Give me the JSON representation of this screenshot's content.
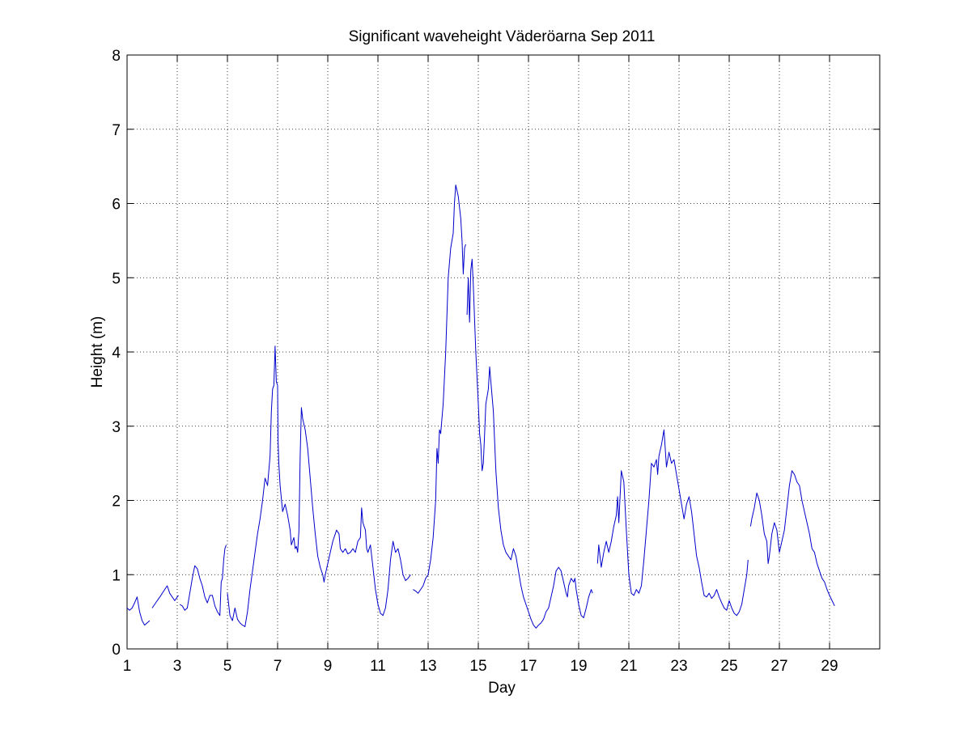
{
  "chart_data": {
    "type": "line",
    "title": "Significant waveheight Väderöarna Sep 2011",
    "xlabel": "Day",
    "ylabel": "Height (m)",
    "xlim": [
      1,
      31
    ],
    "ylim": [
      0,
      8
    ],
    "x_ticks": [
      1,
      3,
      5,
      7,
      9,
      11,
      13,
      15,
      17,
      19,
      21,
      23,
      25,
      27,
      29
    ],
    "y_ticks": [
      0,
      1,
      2,
      3,
      4,
      5,
      6,
      7,
      8
    ],
    "grid": true,
    "line_color": "#0000cc",
    "segments": [
      [
        [
          1.0,
          0.55
        ],
        [
          1.1,
          0.52
        ],
        [
          1.2,
          0.55
        ],
        [
          1.3,
          0.62
        ],
        [
          1.4,
          0.7
        ],
        [
          1.5,
          0.5
        ],
        [
          1.6,
          0.38
        ],
        [
          1.7,
          0.32
        ],
        [
          1.8,
          0.35
        ],
        [
          1.9,
          0.38
        ]
      ],
      [
        [
          2.0,
          0.55
        ],
        [
          2.1,
          0.6
        ],
        [
          2.2,
          0.65
        ],
        [
          2.35,
          0.72
        ],
        [
          2.5,
          0.8
        ],
        [
          2.6,
          0.85
        ],
        [
          2.7,
          0.75
        ],
        [
          2.8,
          0.7
        ],
        [
          2.9,
          0.65
        ],
        [
          3.0,
          0.7
        ],
        [
          3.05,
          0.72
        ]
      ],
      [
        [
          3.1,
          0.6
        ],
        [
          3.2,
          0.58
        ],
        [
          3.3,
          0.52
        ],
        [
          3.4,
          0.55
        ],
        [
          3.5,
          0.75
        ],
        [
          3.6,
          0.95
        ],
        [
          3.7,
          1.12
        ],
        [
          3.8,
          1.08
        ],
        [
          3.9,
          0.95
        ],
        [
          4.0,
          0.85
        ],
        [
          4.1,
          0.7
        ],
        [
          4.2,
          0.62
        ],
        [
          4.3,
          0.72
        ],
        [
          4.4,
          0.72
        ],
        [
          4.5,
          0.58
        ],
        [
          4.6,
          0.5
        ],
        [
          4.7,
          0.45
        ],
        [
          4.75,
          0.9
        ],
        [
          4.8,
          0.95
        ],
        [
          4.85,
          1.2
        ],
        [
          4.9,
          1.35
        ],
        [
          4.95,
          1.4
        ]
      ],
      [
        [
          5.0,
          0.75
        ],
        [
          5.1,
          0.45
        ],
        [
          5.2,
          0.38
        ],
        [
          5.3,
          0.55
        ],
        [
          5.4,
          0.4
        ],
        [
          5.5,
          0.35
        ],
        [
          5.6,
          0.32
        ],
        [
          5.7,
          0.3
        ],
        [
          5.8,
          0.5
        ],
        [
          5.9,
          0.8
        ],
        [
          6.0,
          1.05
        ],
        [
          6.1,
          1.3
        ],
        [
          6.2,
          1.55
        ],
        [
          6.3,
          1.75
        ],
        [
          6.4,
          2.0
        ],
        [
          6.5,
          2.3
        ],
        [
          6.6,
          2.2
        ],
        [
          6.7,
          2.6
        ],
        [
          6.75,
          3.2
        ],
        [
          6.8,
          3.5
        ],
        [
          6.85,
          3.55
        ],
        [
          6.9,
          4.08
        ],
        [
          6.95,
          3.6
        ],
        [
          7.0,
          3.55
        ],
        [
          7.02,
          2.8
        ],
        [
          7.05,
          2.5
        ],
        [
          7.1,
          2.2
        ],
        [
          7.2,
          1.85
        ],
        [
          7.3,
          1.95
        ],
        [
          7.4,
          1.8
        ],
        [
          7.5,
          1.6
        ],
        [
          7.55,
          1.4
        ],
        [
          7.65,
          1.5
        ],
        [
          7.7,
          1.35
        ],
        [
          7.75,
          1.38
        ],
        [
          7.8,
          1.3
        ],
        [
          7.85,
          1.6
        ],
        [
          7.9,
          2.6
        ],
        [
          7.95,
          3.25
        ],
        [
          8.0,
          3.1
        ],
        [
          8.1,
          2.95
        ],
        [
          8.2,
          2.7
        ],
        [
          8.3,
          2.3
        ],
        [
          8.4,
          1.9
        ],
        [
          8.5,
          1.55
        ],
        [
          8.6,
          1.25
        ],
        [
          8.7,
          1.1
        ],
        [
          8.8,
          1.0
        ],
        [
          8.85,
          0.9
        ],
        [
          8.9,
          1.0
        ],
        [
          9.0,
          1.15
        ],
        [
          9.1,
          1.3
        ],
        [
          9.2,
          1.45
        ],
        [
          9.3,
          1.55
        ],
        [
          9.35,
          1.6
        ],
        [
          9.45,
          1.55
        ],
        [
          9.5,
          1.35
        ],
        [
          9.6,
          1.3
        ],
        [
          9.7,
          1.35
        ],
        [
          9.8,
          1.28
        ],
        [
          9.9,
          1.3
        ],
        [
          10.0,
          1.35
        ],
        [
          10.1,
          1.3
        ],
        [
          10.2,
          1.45
        ],
        [
          10.3,
          1.5
        ],
        [
          10.35,
          1.9
        ],
        [
          10.4,
          1.7
        ],
        [
          10.5,
          1.6
        ],
        [
          10.55,
          1.35
        ],
        [
          10.6,
          1.3
        ],
        [
          10.7,
          1.4
        ],
        [
          10.8,
          1.1
        ],
        [
          10.9,
          0.8
        ],
        [
          11.0,
          0.6
        ],
        [
          11.1,
          0.48
        ],
        [
          11.2,
          0.45
        ],
        [
          11.3,
          0.55
        ],
        [
          11.4,
          0.8
        ],
        [
          11.5,
          1.2
        ],
        [
          11.6,
          1.45
        ],
        [
          11.7,
          1.3
        ],
        [
          11.8,
          1.35
        ],
        [
          11.9,
          1.2
        ],
        [
          12.0,
          1.0
        ],
        [
          12.1,
          0.92
        ],
        [
          12.2,
          0.95
        ],
        [
          12.3,
          1.0
        ]
      ],
      [
        [
          12.4,
          0.8
        ],
        [
          12.5,
          0.78
        ],
        [
          12.6,
          0.75
        ],
        [
          12.7,
          0.8
        ],
        [
          12.8,
          0.85
        ],
        [
          12.9,
          0.95
        ],
        [
          13.0,
          1.0
        ],
        [
          13.1,
          1.2
        ],
        [
          13.2,
          1.5
        ],
        [
          13.3,
          2.0
        ],
        [
          13.35,
          2.7
        ],
        [
          13.4,
          2.5
        ],
        [
          13.45,
          2.95
        ],
        [
          13.5,
          2.9
        ],
        [
          13.6,
          3.3
        ],
        [
          13.7,
          4.0
        ],
        [
          13.8,
          5.0
        ],
        [
          13.9,
          5.4
        ],
        [
          14.0,
          5.6
        ],
        [
          14.05,
          6.0
        ],
        [
          14.1,
          6.25
        ],
        [
          14.2,
          6.1
        ],
        [
          14.3,
          5.8
        ],
        [
          14.35,
          5.5
        ],
        [
          14.4,
          5.05
        ],
        [
          14.45,
          5.4
        ],
        [
          14.5,
          5.45
        ]
      ],
      [
        [
          14.55,
          4.5
        ],
        [
          14.6,
          5.0
        ],
        [
          14.65,
          4.4
        ],
        [
          14.7,
          5.1
        ],
        [
          14.75,
          5.25
        ],
        [
          14.8,
          4.9
        ],
        [
          14.9,
          4.0
        ],
        [
          15.0,
          3.3
        ],
        [
          15.05,
          2.9
        ],
        [
          15.1,
          2.75
        ],
        [
          15.15,
          2.4
        ],
        [
          15.2,
          2.5
        ],
        [
          15.25,
          2.9
        ],
        [
          15.3,
          3.3
        ],
        [
          15.4,
          3.5
        ],
        [
          15.45,
          3.8
        ],
        [
          15.5,
          3.6
        ],
        [
          15.6,
          3.2
        ],
        [
          15.7,
          2.4
        ],
        [
          15.8,
          1.9
        ],
        [
          15.9,
          1.6
        ],
        [
          16.0,
          1.4
        ],
        [
          16.1,
          1.3
        ],
        [
          16.2,
          1.25
        ],
        [
          16.3,
          1.2
        ],
        [
          16.4,
          1.35
        ],
        [
          16.5,
          1.25
        ],
        [
          16.6,
          1.05
        ],
        [
          16.7,
          0.85
        ],
        [
          16.8,
          0.7
        ],
        [
          16.9,
          0.6
        ],
        [
          17.0,
          0.5
        ],
        [
          17.1,
          0.4
        ],
        [
          17.2,
          0.32
        ],
        [
          17.3,
          0.28
        ],
        [
          17.4,
          0.32
        ],
        [
          17.5,
          0.35
        ],
        [
          17.6,
          0.4
        ],
        [
          17.7,
          0.5
        ],
        [
          17.8,
          0.55
        ],
        [
          17.9,
          0.7
        ],
        [
          18.0,
          0.85
        ],
        [
          18.1,
          1.05
        ],
        [
          18.2,
          1.1
        ],
        [
          18.3,
          1.05
        ],
        [
          18.4,
          0.9
        ],
        [
          18.5,
          0.75
        ],
        [
          18.55,
          0.7
        ],
        [
          18.6,
          0.85
        ],
        [
          18.7,
          0.95
        ],
        [
          18.8,
          0.9
        ],
        [
          18.85,
          0.95
        ],
        [
          18.9,
          0.8
        ],
        [
          19.0,
          0.6
        ],
        [
          19.1,
          0.45
        ],
        [
          19.2,
          0.42
        ],
        [
          19.3,
          0.55
        ],
        [
          19.4,
          0.7
        ],
        [
          19.5,
          0.8
        ],
        [
          19.55,
          0.75
        ]
      ],
      [
        [
          19.75,
          1.15
        ],
        [
          19.8,
          1.4
        ],
        [
          19.9,
          1.1
        ],
        [
          20.0,
          1.3
        ],
        [
          20.1,
          1.45
        ],
        [
          20.2,
          1.3
        ],
        [
          20.3,
          1.45
        ],
        [
          20.4,
          1.65
        ],
        [
          20.5,
          1.8
        ],
        [
          20.55,
          2.05
        ],
        [
          20.6,
          1.7
        ],
        [
          20.7,
          2.4
        ],
        [
          20.8,
          2.25
        ],
        [
          20.9,
          1.6
        ],
        [
          21.0,
          1.0
        ],
        [
          21.1,
          0.75
        ],
        [
          21.2,
          0.72
        ],
        [
          21.3,
          0.8
        ],
        [
          21.4,
          0.75
        ],
        [
          21.5,
          0.85
        ],
        [
          21.6,
          1.2
        ],
        [
          21.7,
          1.6
        ],
        [
          21.8,
          2.0
        ],
        [
          21.9,
          2.5
        ],
        [
          22.0,
          2.45
        ],
        [
          22.1,
          2.55
        ],
        [
          22.15,
          2.35
        ],
        [
          22.2,
          2.6
        ],
        [
          22.3,
          2.75
        ],
        [
          22.4,
          2.95
        ],
        [
          22.5,
          2.45
        ],
        [
          22.6,
          2.65
        ],
        [
          22.7,
          2.5
        ],
        [
          22.8,
          2.55
        ],
        [
          22.9,
          2.35
        ],
        [
          23.0,
          2.15
        ],
        [
          23.1,
          1.95
        ],
        [
          23.2,
          1.75
        ],
        [
          23.3,
          1.95
        ],
        [
          23.4,
          2.05
        ],
        [
          23.5,
          1.85
        ],
        [
          23.6,
          1.55
        ],
        [
          23.7,
          1.25
        ],
        [
          23.8,
          1.1
        ],
        [
          23.9,
          0.9
        ],
        [
          24.0,
          0.72
        ],
        [
          24.1,
          0.7
        ],
        [
          24.2,
          0.75
        ],
        [
          24.3,
          0.68
        ],
        [
          24.4,
          0.72
        ],
        [
          24.5,
          0.8
        ],
        [
          24.6,
          0.7
        ],
        [
          24.7,
          0.62
        ],
        [
          24.8,
          0.55
        ],
        [
          24.9,
          0.52
        ],
        [
          25.0,
          0.65
        ],
        [
          25.1,
          0.55
        ],
        [
          25.2,
          0.48
        ],
        [
          25.3,
          0.45
        ],
        [
          25.4,
          0.5
        ],
        [
          25.5,
          0.6
        ],
        [
          25.6,
          0.8
        ],
        [
          25.7,
          1.0
        ],
        [
          25.75,
          1.2
        ]
      ],
      [
        [
          25.85,
          1.65
        ],
        [
          25.9,
          1.75
        ],
        [
          26.0,
          1.9
        ],
        [
          26.1,
          2.1
        ],
        [
          26.2,
          2.0
        ],
        [
          26.3,
          1.8
        ],
        [
          26.4,
          1.55
        ],
        [
          26.5,
          1.45
        ],
        [
          26.55,
          1.15
        ],
        [
          26.6,
          1.25
        ],
        [
          26.7,
          1.55
        ],
        [
          26.8,
          1.7
        ],
        [
          26.9,
          1.6
        ],
        [
          27.0,
          1.3
        ],
        [
          27.1,
          1.45
        ],
        [
          27.2,
          1.6
        ],
        [
          27.3,
          1.9
        ],
        [
          27.4,
          2.2
        ],
        [
          27.5,
          2.4
        ],
        [
          27.6,
          2.35
        ],
        [
          27.7,
          2.25
        ],
        [
          27.8,
          2.2
        ],
        [
          27.9,
          2.0
        ],
        [
          28.0,
          1.85
        ],
        [
          28.1,
          1.7
        ],
        [
          28.2,
          1.55
        ],
        [
          28.3,
          1.35
        ],
        [
          28.4,
          1.3
        ],
        [
          28.5,
          1.15
        ],
        [
          28.6,
          1.05
        ],
        [
          28.7,
          0.95
        ],
        [
          28.8,
          0.9
        ],
        [
          28.9,
          0.8
        ],
        [
          29.0,
          0.72
        ],
        [
          29.1,
          0.65
        ],
        [
          29.2,
          0.58
        ]
      ]
    ]
  }
}
